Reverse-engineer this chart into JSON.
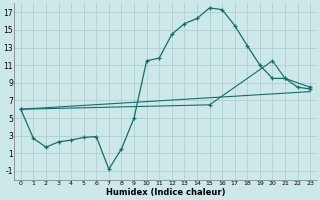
{
  "xlabel": "Humidex (Indice chaleur)",
  "bg_color": "#cce8e8",
  "grid_color": "#aacccc",
  "line_color": "#1a6b6b",
  "xlim": [
    -0.5,
    23.5
  ],
  "ylim": [
    -2,
    18
  ],
  "xticks": [
    0,
    1,
    2,
    3,
    4,
    5,
    6,
    7,
    8,
    9,
    10,
    11,
    12,
    13,
    14,
    15,
    16,
    17,
    18,
    19,
    20,
    21,
    22,
    23
  ],
  "yticks": [
    -1,
    1,
    3,
    5,
    7,
    9,
    11,
    13,
    15,
    17
  ],
  "line1_x": [
    0,
    1,
    2,
    3,
    4,
    5,
    6,
    7,
    8,
    9,
    10,
    11,
    12,
    13,
    14,
    15,
    16,
    17,
    18,
    19,
    20,
    21,
    22,
    23
  ],
  "line1_y": [
    6.0,
    2.7,
    1.7,
    2.3,
    2.5,
    2.8,
    2.9,
    -0.8,
    1.5,
    5.0,
    11.5,
    11.8,
    14.5,
    15.7,
    16.3,
    17.5,
    17.3,
    15.5,
    13.2,
    11.0,
    9.5,
    9.5,
    8.5,
    8.3
  ],
  "line2_x": [
    0,
    23
  ],
  "line2_y": [
    6.0,
    8.0
  ],
  "line3_x": [
    0,
    15,
    20,
    21,
    23
  ],
  "line3_y": [
    6.0,
    6.5,
    11.5,
    9.5,
    8.5
  ]
}
